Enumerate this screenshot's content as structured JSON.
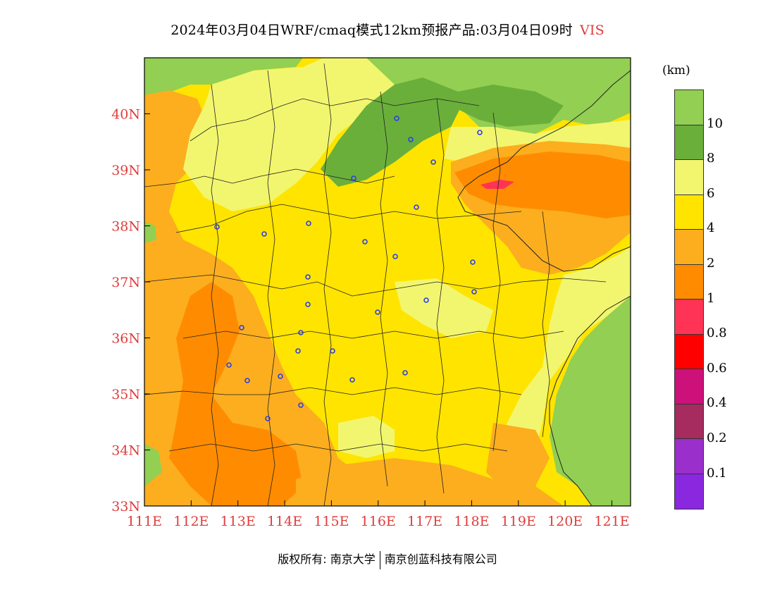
{
  "title": {
    "text": "2024年03月04日WRF/cmaq模式12km预报产品:03月04日09时",
    "variable": "VIS"
  },
  "map": {
    "lon_range": [
      111,
      121.4
    ],
    "lat_range": [
      33,
      41
    ],
    "ocean_color": "#92cf52",
    "y_ticks": [
      "33N",
      "34N",
      "35N",
      "36N",
      "37N",
      "38N",
      "39N",
      "40N"
    ],
    "x_ticks": [
      "111E",
      "112E",
      "113E",
      "114E",
      "115E",
      "116E",
      "117E",
      "118E",
      "119E",
      "120E",
      "121E"
    ],
    "city_marker_color": "#2b3ee8"
  },
  "legend": {
    "unit": "(km)",
    "classes": [
      {
        "color": "#92cf52",
        "label": "10"
      },
      {
        "color": "#6aaf3a",
        "label": "8"
      },
      {
        "color": "#f2f66e",
        "label": "6"
      },
      {
        "color": "#ffe400",
        "label": "4"
      },
      {
        "color": "#fcae1e",
        "label": "2"
      },
      {
        "color": "#ff8c00",
        "label": "1"
      },
      {
        "color": "#ff3355",
        "label": "0.8"
      },
      {
        "color": "#ff0000",
        "label": "0.6"
      },
      {
        "color": "#cc117a",
        "label": "0.4"
      },
      {
        "color": "#a62b5f",
        "label": "0.2"
      },
      {
        "color": "#9a2fcc",
        "label": "0.1"
      },
      {
        "color": "#8a28e0",
        "label": ""
      }
    ]
  },
  "footer": {
    "left": "版权所有: 南京大学",
    "right": "南京创蓝科技有限公司"
  }
}
